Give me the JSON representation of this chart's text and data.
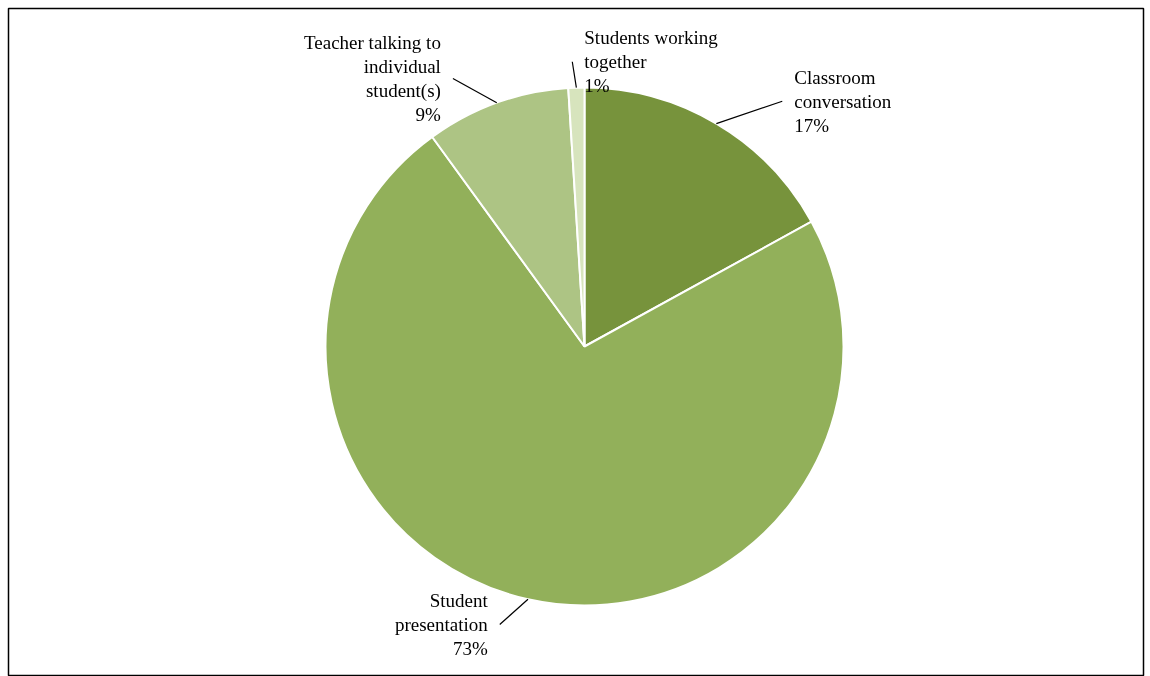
{
  "chart_data": {
    "type": "pie",
    "categories": [
      "Classroom conversation",
      "Student presentation",
      "Teacher talking to individual student(s)",
      "Students working together"
    ],
    "values": [
      17,
      73,
      9,
      1
    ],
    "colors": [
      "#77933c",
      "#92b05a",
      "#adc484",
      "#d7e4bd"
    ],
    "value_labels": [
      "17%",
      "73%",
      "9%",
      "1%"
    ]
  }
}
